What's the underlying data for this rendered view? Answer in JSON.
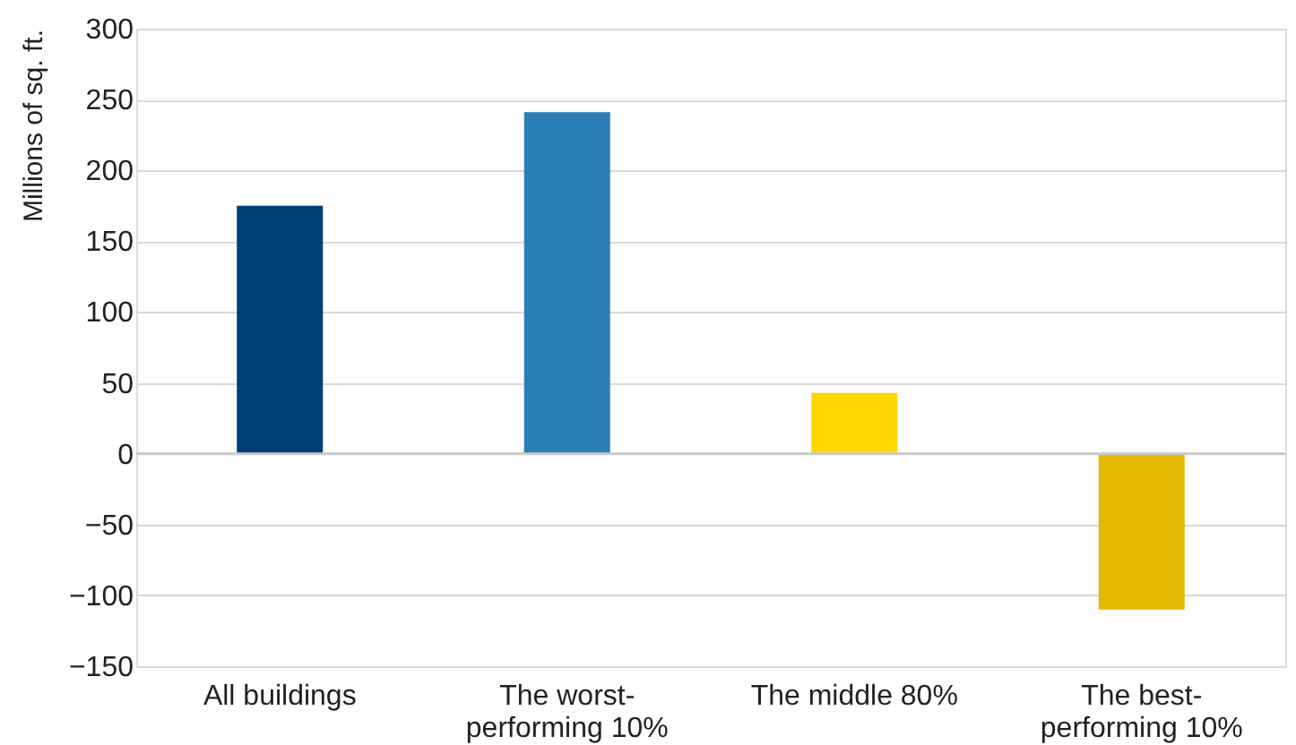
{
  "chart_data": {
    "type": "bar",
    "ylabel": "Millions of sq. ft.",
    "categories": [
      "All buildings",
      "The worst-performing 10%",
      "The middle 80%",
      "The best-performing 10%"
    ],
    "values": [
      175,
      241,
      43,
      -110
    ],
    "colors": [
      "#003f73",
      "#2b7fb6",
      "#ffd700",
      "#e3b800"
    ],
    "ylim": [
      -150,
      300
    ],
    "yticks": [
      {
        "value": -150,
        "label": "−150"
      },
      {
        "value": -100,
        "label": "−100"
      },
      {
        "value": -50,
        "label": "−50"
      },
      0,
      50,
      100,
      150,
      200,
      250,
      300
    ],
    "grid": "y"
  }
}
